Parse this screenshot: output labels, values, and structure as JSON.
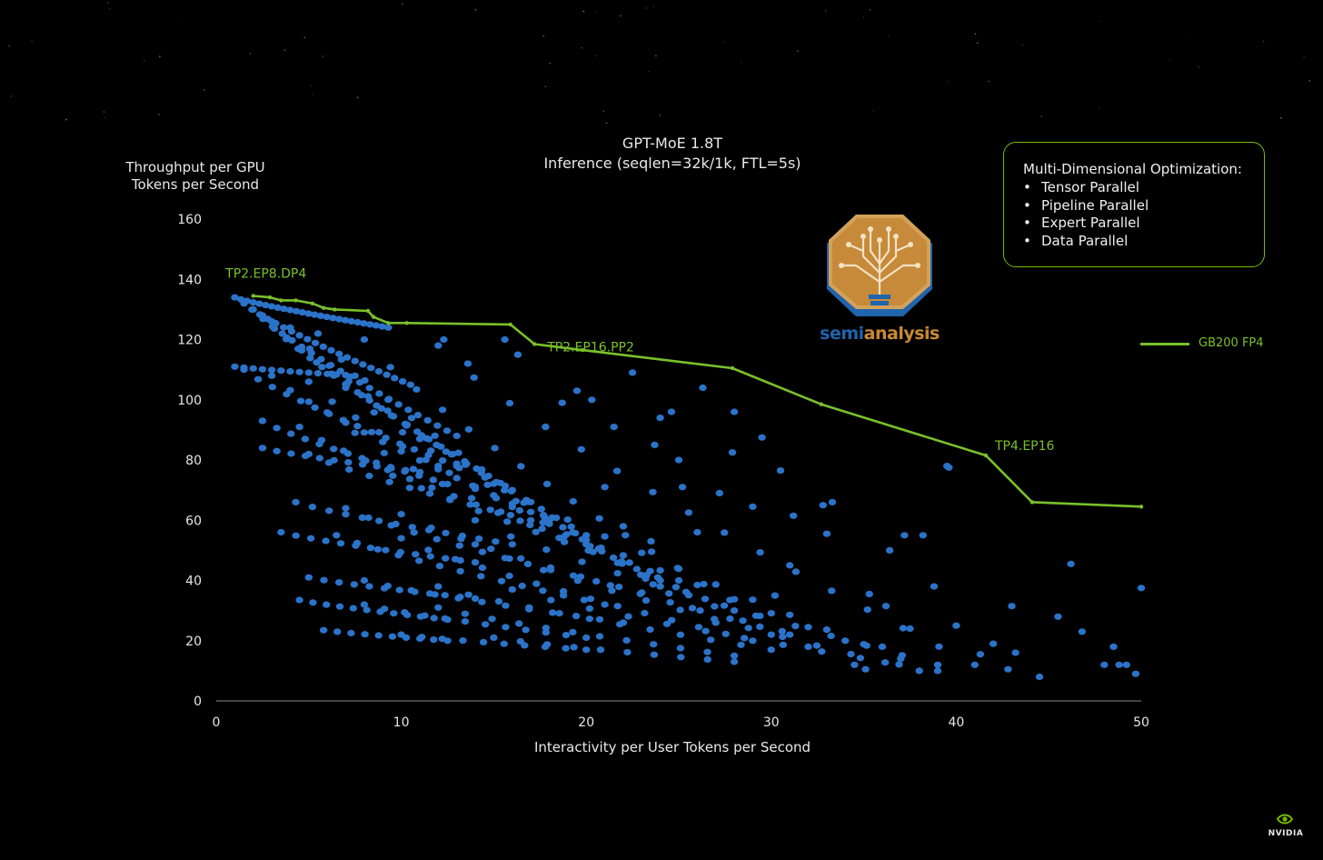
{
  "chart_data": {
    "type": "scatter",
    "title": "GPT-MoE 1.8T",
    "subtitle": "Inference (seqlen=32k/1k, FTL=5s)",
    "ylabel_line1": "Throughput per GPU",
    "ylabel_line2": "Tokens per Second",
    "xlabel": "Interactivity per User Tokens per Second",
    "xlim": [
      0,
      50
    ],
    "ylim": [
      0,
      160
    ],
    "xticks": [
      "0",
      "10",
      "20",
      "30",
      "40",
      "50"
    ],
    "yticks": [
      "0",
      "20",
      "40",
      "60",
      "80",
      "100",
      "120",
      "140",
      "160"
    ],
    "grid": false,
    "legend_position": "right",
    "series": [
      {
        "name": "GB200 FP4",
        "kind": "line",
        "color": "#7ac02b",
        "x": [
          2.0,
          2.9,
          3.5,
          4.3,
          5.2,
          5.8,
          6.4,
          8.2,
          8.5,
          9.3,
          10.3,
          15.9,
          17.2,
          19.8,
          27.9,
          32.7,
          41.6,
          44.1,
          50.0
        ],
        "y": [
          134.5,
          134.0,
          133.0,
          133.0,
          132.0,
          130.5,
          130.0,
          129.5,
          127.5,
          125.5,
          125.5,
          125.0,
          118.5,
          116.5,
          110.5,
          98.5,
          81.5,
          66.0,
          64.5
        ]
      },
      {
        "name": "",
        "kind": "scatter",
        "color": "#2b73c9",
        "families": [
          {
            "x0": 1.0,
            "x1": 9.3,
            "y0": 134,
            "y1": 124,
            "n": 26
          },
          {
            "x0": 1.5,
            "x1": 10.5,
            "y0": 132,
            "y1": 105,
            "n": 22
          },
          {
            "x0": 2.0,
            "x1": 13.0,
            "y0": 130,
            "y1": 88,
            "n": 22
          },
          {
            "x0": 2.5,
            "x1": 16.0,
            "y0": 128,
            "y1": 70,
            "n": 22
          },
          {
            "x0": 3.0,
            "x1": 20.0,
            "y0": 126,
            "y1": 55,
            "n": 22
          },
          {
            "x0": 4.0,
            "x1": 24.0,
            "y0": 124,
            "y1": 38,
            "n": 20
          },
          {
            "x0": 5.5,
            "x1": 27.0,
            "y0": 122,
            "y1": 26,
            "n": 18
          },
          {
            "x0": 8.0,
            "x1": 32.0,
            "y0": 120,
            "y1": 18,
            "n": 18
          },
          {
            "x0": 12.0,
            "x1": 41.0,
            "y0": 118,
            "y1": 12,
            "n": 16
          },
          {
            "x0": 1.0,
            "x1": 7.5,
            "y0": 111,
            "y1": 108,
            "n": 14
          },
          {
            "x0": 1.5,
            "x1": 13.0,
            "y0": 110,
            "y1": 78,
            "n": 16
          },
          {
            "x0": 3.0,
            "x1": 18.0,
            "y0": 108,
            "y1": 60,
            "n": 16
          },
          {
            "x0": 5.0,
            "x1": 24.0,
            "y0": 106,
            "y1": 40,
            "n": 16
          },
          {
            "x0": 7.0,
            "x1": 30.0,
            "y0": 104,
            "y1": 22,
            "n": 16
          },
          {
            "x0": 2.5,
            "x1": 12.5,
            "y0": 93,
            "y1": 72,
            "n": 14
          },
          {
            "x0": 4.5,
            "x1": 20.0,
            "y0": 91,
            "y1": 52,
            "n": 14
          },
          {
            "x0": 7.5,
            "x1": 28.0,
            "y0": 89,
            "y1": 30,
            "n": 14
          },
          {
            "x0": 11.0,
            "x1": 37.0,
            "y0": 87,
            "y1": 14,
            "n": 14
          },
          {
            "x0": 2.5,
            "x1": 11.0,
            "y0": 84,
            "y1": 76,
            "n": 12
          },
          {
            "x0": 5.0,
            "x1": 17.0,
            "y0": 82,
            "y1": 60,
            "n": 12
          },
          {
            "x0": 8.0,
            "x1": 25.0,
            "y0": 80,
            "y1": 40,
            "n": 12
          },
          {
            "x0": 12.0,
            "x1": 34.0,
            "y0": 78,
            "y1": 20,
            "n": 12
          },
          {
            "x0": 4.3,
            "x1": 16.0,
            "y0": 66,
            "y1": 52,
            "n": 14
          },
          {
            "x0": 7.0,
            "x1": 23.0,
            "y0": 64,
            "y1": 36,
            "n": 14
          },
          {
            "x0": 10.0,
            "x1": 31.0,
            "y0": 62,
            "y1": 22,
            "n": 14
          },
          {
            "x0": 14.0,
            "x1": 39.0,
            "y0": 60,
            "y1": 12,
            "n": 14
          },
          {
            "x0": 3.5,
            "x1": 14.0,
            "y0": 56,
            "y1": 46,
            "n": 14
          },
          {
            "x0": 6.5,
            "x1": 21.0,
            "y0": 55,
            "y1": 32,
            "n": 14
          },
          {
            "x0": 10.0,
            "x1": 29.0,
            "y0": 54,
            "y1": 20,
            "n": 14
          },
          {
            "x0": 14.0,
            "x1": 38.0,
            "y0": 52,
            "y1": 10,
            "n": 14
          },
          {
            "x0": 5.0,
            "x1": 14.0,
            "y0": 41,
            "y1": 34,
            "n": 12
          },
          {
            "x0": 8.0,
            "x1": 22.0,
            "y0": 40,
            "y1": 26,
            "n": 12
          },
          {
            "x0": 12.0,
            "x1": 30.0,
            "y0": 38,
            "y1": 17,
            "n": 12
          },
          {
            "x0": 16.0,
            "x1": 39.0,
            "y0": 37,
            "y1": 10,
            "n": 12
          },
          {
            "x0": 4.5,
            "x1": 12.5,
            "y0": 33.5,
            "y1": 27,
            "n": 12
          },
          {
            "x0": 8.0,
            "x1": 20.0,
            "y0": 32,
            "y1": 21,
            "n": 12
          },
          {
            "x0": 12.0,
            "x1": 28.0,
            "y0": 31,
            "y1": 15,
            "n": 12
          },
          {
            "x0": 5.8,
            "x1": 12.5,
            "y0": 23.5,
            "y1": 20,
            "n": 10
          },
          {
            "x0": 10.0,
            "x1": 20.0,
            "y0": 22,
            "y1": 17,
            "n": 10
          },
          {
            "x0": 15.0,
            "x1": 28.0,
            "y0": 21,
            "y1": 13,
            "n": 10
          }
        ],
        "extra_points": [
          [
            39.5,
            78
          ],
          [
            39.6,
            77.5
          ],
          [
            44.5,
            8
          ],
          [
            49.7,
            9
          ],
          [
            50.0,
            37.5
          ],
          [
            46.2,
            45.5
          ],
          [
            46.8,
            23
          ],
          [
            48.5,
            18
          ],
          [
            48.0,
            12
          ],
          [
            48.8,
            12
          ],
          [
            42.8,
            10.5
          ],
          [
            43.2,
            16
          ],
          [
            43.0,
            31.5
          ],
          [
            40.0,
            25
          ],
          [
            41.3,
            15.5
          ],
          [
            38.8,
            38
          ],
          [
            38.2,
            55
          ],
          [
            37.2,
            55
          ],
          [
            36.4,
            50
          ],
          [
            36.2,
            31.5
          ],
          [
            35.3,
            35.5
          ],
          [
            34.5,
            12
          ],
          [
            35.1,
            10.5
          ],
          [
            33.0,
            55.5
          ],
          [
            33.3,
            66
          ],
          [
            32.8,
            65
          ],
          [
            30.5,
            76.5
          ],
          [
            31.2,
            61.5
          ],
          [
            26.3,
            104
          ],
          [
            28.0,
            96
          ],
          [
            27.9,
            82.5
          ],
          [
            29.5,
            87.5
          ],
          [
            22.5,
            109
          ],
          [
            20.3,
            100
          ],
          [
            24.0,
            94
          ],
          [
            24.6,
            96
          ],
          [
            23.7,
            85
          ],
          [
            25.0,
            80
          ],
          [
            25.2,
            71
          ],
          [
            21.5,
            91
          ],
          [
            19.5,
            103
          ],
          [
            18.7,
            99
          ],
          [
            17.8,
            91
          ],
          [
            15.6,
            120
          ],
          [
            16.3,
            115
          ],
          [
            13.6,
            112
          ],
          [
            12.3,
            120
          ],
          [
            42.0,
            19
          ],
          [
            45.5,
            28
          ],
          [
            49.2,
            12
          ],
          [
            36.0,
            18
          ],
          [
            37.5,
            24
          ],
          [
            31.0,
            45
          ],
          [
            30.2,
            35
          ],
          [
            29.0,
            64.5
          ],
          [
            27.2,
            69
          ],
          [
            26.0,
            56
          ],
          [
            22.0,
            58
          ],
          [
            23.5,
            53
          ],
          [
            21.0,
            71
          ]
        ]
      }
    ],
    "annotations": [
      {
        "text": "TP2.EP8.DP4",
        "x": 2.0,
        "y": 134.5,
        "color": "#7ac02b"
      },
      {
        "text": "TP2.EP16.PP2",
        "x": 17.2,
        "y": 118.5,
        "color": "#7ac02b"
      },
      {
        "text": "TP4.EP16",
        "x": 41.6,
        "y": 81.5,
        "color": "#7ac02b"
      }
    ]
  },
  "callout": {
    "heading": "Multi-Dimensional Optimization:",
    "bullet": "•",
    "items": [
      "Tensor Parallel",
      "Pipeline Parallel",
      "Expert Parallel",
      "Data Parallel"
    ],
    "border_color": "#76b900"
  },
  "logo": {
    "part1": "semi",
    "part2": "analysis",
    "icon": "semianalysis-logo-icon"
  },
  "brand": {
    "name": "NVIDIA",
    "icon": "nvidia-eye-icon"
  }
}
